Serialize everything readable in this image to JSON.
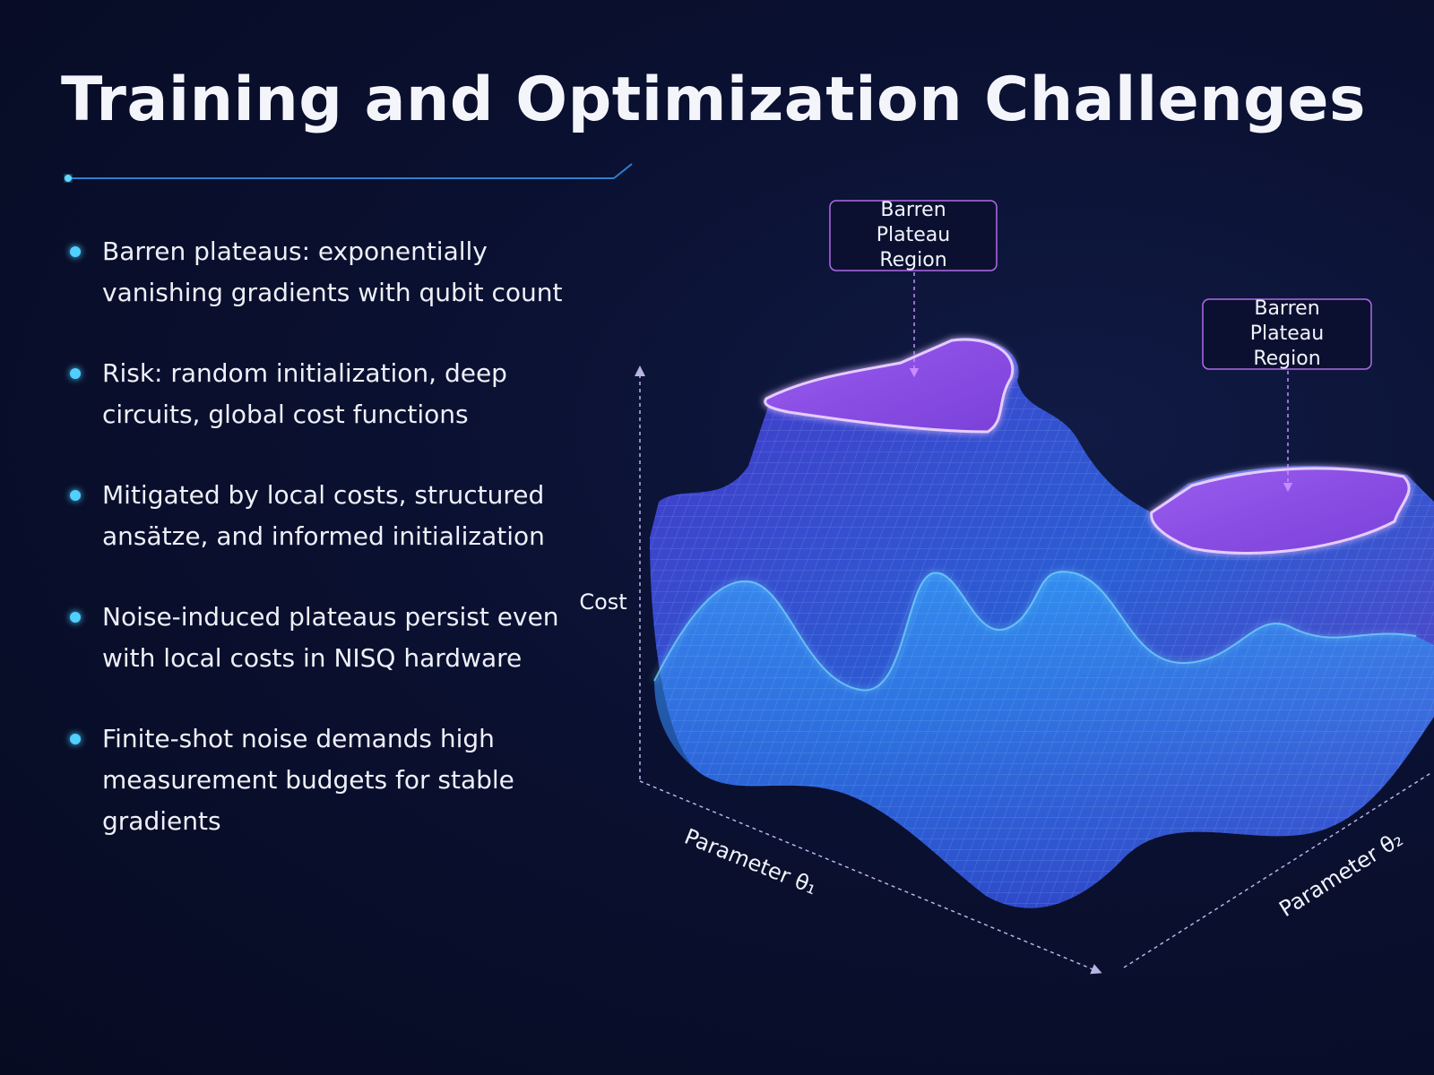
{
  "header": {
    "title": "Training and Optimization Challenges"
  },
  "bullets": [
    "Barren plateaus: exponentially vanishing gradients with qubit count",
    "Risk: random initialization, deep circuits, global cost functions",
    "Mitigated by local costs, structured ansätze, and informed initialization",
    "Noise-induced plateaus persist even with local costs in NISQ hardware",
    "Finite-shot noise demands high measurement budgets for stable gradients"
  ],
  "figure": {
    "annotations": [
      "Barren Plateau Region",
      "Barren Plateau Region"
    ],
    "axis_labels": {
      "z": "Cost",
      "x": "Parameter θ₁",
      "y": "Parameter θ₂"
    }
  }
}
